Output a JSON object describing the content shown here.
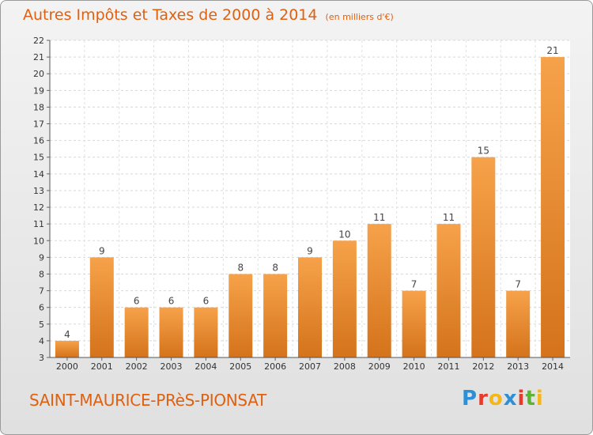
{
  "header": {
    "title": "Autres Impôts et Taxes de 2000 à 2014",
    "unit": "(en milliers d'€)"
  },
  "footer": {
    "location": "SAINT-MAURICE-PRèS-PIONSAT",
    "brand_letters": [
      "P",
      "r",
      "o",
      "x",
      "i",
      "t",
      "i"
    ]
  },
  "colors": {
    "accent": "#e06010",
    "bar_top": "#f6a24a",
    "bar_bottom": "#d4731b",
    "brand": [
      "#2d8fd6",
      "#e8392b",
      "#f5b718",
      "#2d8fd6",
      "#e8392b",
      "#5db431",
      "#f5b718"
    ]
  },
  "chart_data": {
    "type": "bar",
    "categories": [
      "2000",
      "2001",
      "2002",
      "2003",
      "2004",
      "2005",
      "2006",
      "2007",
      "2008",
      "2009",
      "2010",
      "2011",
      "2012",
      "2013",
      "2014"
    ],
    "values": [
      4,
      9,
      6,
      6,
      6,
      8,
      8,
      9,
      10,
      11,
      7,
      11,
      15,
      7,
      21
    ],
    "ylim": [
      3,
      22
    ],
    "yticks": [
      3,
      4,
      5,
      6,
      7,
      8,
      9,
      10,
      11,
      12,
      13,
      14,
      15,
      16,
      17,
      18,
      19,
      20,
      21,
      22
    ],
    "grid": true,
    "data_labels": true
  }
}
